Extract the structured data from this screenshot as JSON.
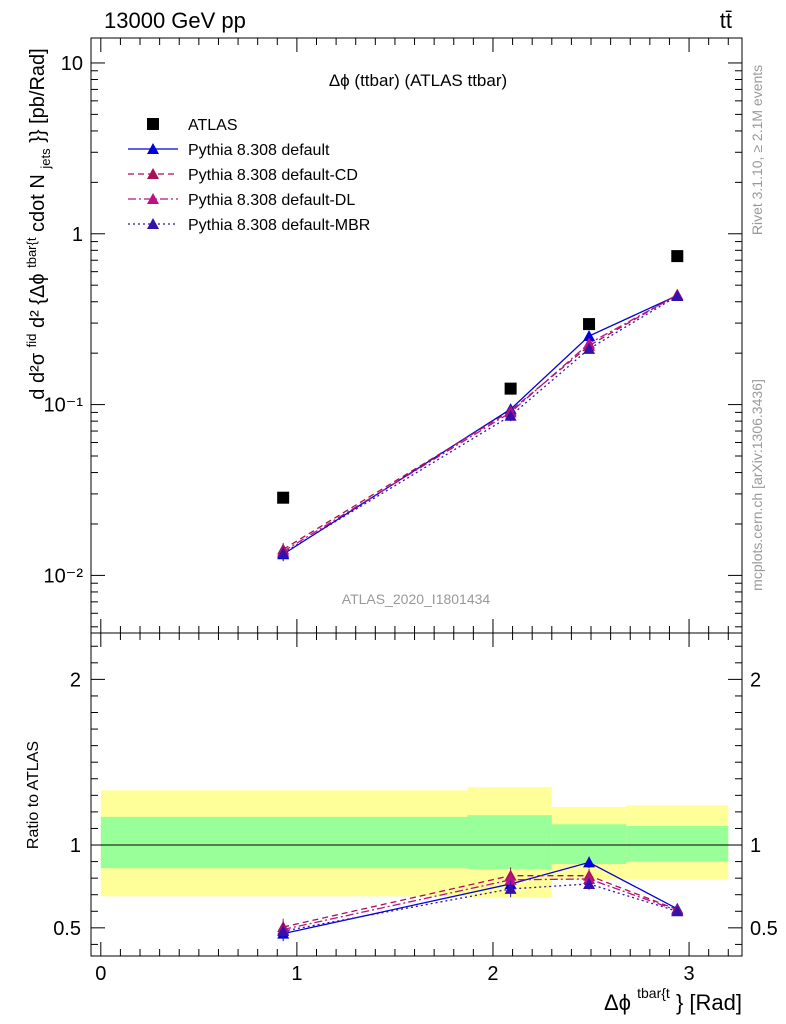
{
  "header": {
    "energy": "13000 GeV pp",
    "process": "tt̄"
  },
  "side_labels": {
    "rivet": "Rivet 3.1.10, ≥ 2.1M events",
    "mcplots": "mcplots.cern.ch [arXiv:1306.3436]"
  },
  "analysis_id": "ATLAS_2020_I1801434",
  "chart_data": [
    {
      "type": "scatter",
      "panel": "main",
      "title": "Δϕ (ttbar) (ATLAS ttbar)",
      "ylabel_parts": [
        "d",
        "d²σ",
        "fid",
        "d² {Δϕ",
        "tbar{t",
        "cdot N",
        "jets",
        "}} [pb/Rad]"
      ],
      "yscale": "log",
      "xlim": [
        -0.05,
        3.27
      ],
      "ylim": [
        0.0046,
        14
      ],
      "ytick_labels": [
        "10⁻²",
        "10⁻¹",
        "1",
        "10"
      ],
      "legend_position": "top-left",
      "x": [
        0.93,
        2.09,
        2.49,
        2.94
      ],
      "series": [
        {
          "name": "ATLAS",
          "color": "#000000",
          "marker": "square",
          "line": "none",
          "values": [
            0.0285,
            0.124,
            0.296,
            0.74
          ]
        },
        {
          "name": "Pythia 8.308 default",
          "color": "#0000dd",
          "marker": "triangle",
          "line": "solid",
          "values": [
            0.0133,
            0.094,
            0.252,
            0.435
          ],
          "errors": [
            0.0012,
            0.006,
            0.012,
            0.014
          ]
        },
        {
          "name": "Pythia 8.308 default-CD",
          "color": "#aa1155",
          "marker": "triangle",
          "line": "dashed",
          "values": [
            0.0142,
            0.092,
            0.221,
            0.44
          ],
          "errors": [
            0.0013,
            0.006,
            0.012,
            0.014
          ]
        },
        {
          "name": "Pythia 8.308 default-DL",
          "color": "#bb1188",
          "marker": "triangle",
          "line": "dash-dot",
          "values": [
            0.0138,
            0.09,
            0.228,
            0.438
          ],
          "errors": [
            0.0013,
            0.006,
            0.012,
            0.014
          ]
        },
        {
          "name": "Pythia 8.308 default-MBR",
          "color": "#3311aa",
          "marker": "triangle",
          "line": "dotted",
          "values": [
            0.0135,
            0.086,
            0.212,
            0.432
          ],
          "errors": [
            0.0012,
            0.006,
            0.012,
            0.014
          ]
        }
      ]
    },
    {
      "type": "line",
      "panel": "ratio",
      "ylabel": "Ratio to ATLAS",
      "xlabel_parts": [
        "Δϕ",
        "tbar{t",
        "} [Rad]"
      ],
      "xlim": [
        -0.05,
        3.27
      ],
      "ylim": [
        0.33,
        2.28
      ],
      "xtick_labels": [
        "0",
        "1",
        "2",
        "3"
      ],
      "ytick_labels": [
        "0.5",
        "1",
        "2"
      ],
      "reference_line": 1.0,
      "bands": {
        "bins": [
          [
            0.0,
            1.87
          ],
          [
            1.87,
            2.3
          ],
          [
            2.3,
            2.68
          ],
          [
            2.68,
            3.2
          ]
        ],
        "inner": {
          "color": "#99ff99",
          "lo": [
            0.86,
            0.855,
            0.885,
            0.9
          ],
          "hi": [
            1.17,
            1.18,
            1.125,
            1.115
          ]
        },
        "outer": {
          "color": "#ffff99",
          "lo": [
            0.69,
            0.68,
            0.79,
            0.79
          ],
          "hi": [
            1.33,
            1.35,
            1.23,
            1.24
          ]
        }
      },
      "x": [
        0.93,
        2.09,
        2.49,
        2.94
      ],
      "series": [
        {
          "name": "Pythia 8.308 default",
          "color": "#0000dd",
          "marker": "triangle",
          "line": "solid",
          "values": [
            0.465,
            0.765,
            0.895,
            0.615
          ],
          "errors": [
            0.045,
            0.05,
            0.035,
            0.02
          ]
        },
        {
          "name": "Pythia 8.308 default-CD",
          "color": "#aa1155",
          "marker": "triangle",
          "line": "dashed",
          "values": [
            0.505,
            0.815,
            0.815,
            0.61
          ],
          "errors": [
            0.05,
            0.05,
            0.04,
            0.02
          ]
        },
        {
          "name": "Pythia 8.308 default-DL",
          "color": "#bb1188",
          "marker": "triangle",
          "line": "dash-dot",
          "values": [
            0.49,
            0.79,
            0.795,
            0.605
          ],
          "errors": [
            0.05,
            0.05,
            0.04,
            0.02
          ]
        },
        {
          "name": "Pythia 8.308 default-MBR",
          "color": "#3311aa",
          "marker": "triangle",
          "line": "dotted",
          "values": [
            0.48,
            0.735,
            0.765,
            0.6
          ],
          "errors": [
            0.05,
            0.05,
            0.035,
            0.02
          ]
        }
      ]
    }
  ]
}
